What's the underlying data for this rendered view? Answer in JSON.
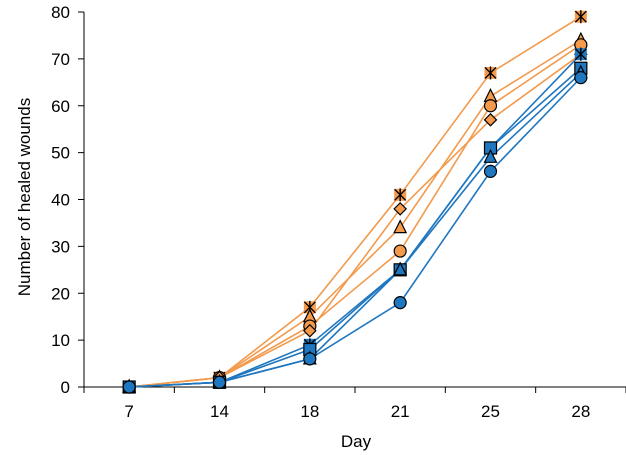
{
  "chart_data": {
    "type": "line",
    "xlabel": "Day",
    "ylabel": "Number of healed wounds",
    "categories": [
      "7",
      "14",
      "18",
      "21",
      "25",
      "28"
    ],
    "ylim": [
      0,
      80
    ],
    "yticks": [
      0,
      10,
      20,
      30,
      40,
      50,
      60,
      70,
      80
    ],
    "grid": false,
    "legend": "none",
    "colors": {
      "orange": "#F39A4C",
      "blue": "#1F77C0",
      "outline": "#000000"
    },
    "series": [
      {
        "color": "#F39A4C",
        "marker": "star-square-icon",
        "values": [
          0,
          2,
          17,
          41,
          67,
          79
        ]
      },
      {
        "color": "#F39A4C",
        "marker": "triangle-icon",
        "values": [
          0,
          2,
          15,
          34,
          62,
          74
        ]
      },
      {
        "color": "#F39A4C",
        "marker": "circle-icon",
        "values": [
          0,
          2,
          13,
          29,
          60,
          73
        ]
      },
      {
        "color": "#F39A4C",
        "marker": "diamond-icon",
        "values": [
          0,
          2,
          12,
          38,
          57,
          71
        ]
      },
      {
        "color": "#1F77C0",
        "marker": "star-square-icon",
        "values": [
          0,
          1,
          9,
          25,
          51,
          71
        ]
      },
      {
        "color": "#1F77C0",
        "marker": "square-icon",
        "values": [
          0,
          1,
          8,
          25,
          51,
          68
        ]
      },
      {
        "color": "#1F77C0",
        "marker": "triangle-icon",
        "values": [
          0,
          1,
          6,
          25,
          49,
          67
        ]
      },
      {
        "color": "#1F77C0",
        "marker": "circle-icon",
        "values": [
          0,
          1,
          6,
          18,
          46,
          66
        ]
      }
    ]
  }
}
